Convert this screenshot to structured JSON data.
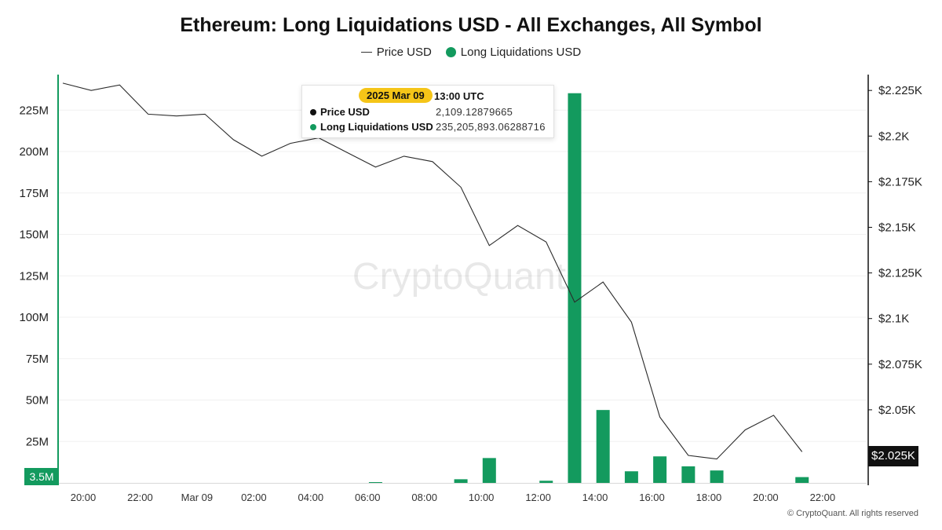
{
  "chart_data": {
    "type": "bar+line",
    "title": "Ethereum: Long Liquidations USD - All Exchanges, All Symbol",
    "legend": [
      "Price USD",
      "Long Liquidations USD"
    ],
    "x_ticks": [
      "20:00",
      "22:00",
      "Mar 09",
      "02:00",
      "04:00",
      "06:00",
      "08:00",
      "10:00",
      "12:00",
      "14:00",
      "16:00",
      "18:00",
      "20:00",
      "22:00"
    ],
    "y_left_ticks": [
      "25M",
      "50M",
      "75M",
      "100M",
      "125M",
      "150M",
      "175M",
      "200M",
      "225M"
    ],
    "y_right_ticks": [
      "$2.025K",
      "$2.05K",
      "$2.075K",
      "$2.1K",
      "$2.125K",
      "$2.15K",
      "$2.175K",
      "$2.2K",
      "$2.225K"
    ],
    "ylim_left": [
      0,
      248000000
    ],
    "ylim_right": [
      2016,
      2232
    ],
    "x_start": "2025-03-08T19:00",
    "x_hours": 28,
    "series": [
      {
        "name": "Long Liquidations USD",
        "type": "bar",
        "color": "#139a5e",
        "points": [
          {
            "t": "2025-03-09T06:00",
            "value": 400000
          },
          {
            "t": "2025-03-09T09:00",
            "value": 2200000
          },
          {
            "t": "2025-03-09T10:00",
            "value": 15000000
          },
          {
            "t": "2025-03-09T12:00",
            "value": 1300000
          },
          {
            "t": "2025-03-09T13:00",
            "value": 235205893.06288716
          },
          {
            "t": "2025-03-09T14:00",
            "value": 44000000
          },
          {
            "t": "2025-03-09T15:00",
            "value": 7000000
          },
          {
            "t": "2025-03-09T16:00",
            "value": 16000000
          },
          {
            "t": "2025-03-09T17:00",
            "value": 10000000
          },
          {
            "t": "2025-03-09T18:00",
            "value": 7500000
          },
          {
            "t": "2025-03-09T21:00",
            "value": 3500000
          }
        ]
      },
      {
        "name": "Price USD",
        "type": "line",
        "color": "#333333",
        "points": [
          {
            "t": "2025-03-08T19:00",
            "value": 2229
          },
          {
            "t": "2025-03-08T20:00",
            "value": 2225
          },
          {
            "t": "2025-03-08T21:00",
            "value": 2228
          },
          {
            "t": "2025-03-08T22:00",
            "value": 2212
          },
          {
            "t": "2025-03-08T23:00",
            "value": 2211
          },
          {
            "t": "2025-03-09T00:00",
            "value": 2212
          },
          {
            "t": "2025-03-09T01:00",
            "value": 2198
          },
          {
            "t": "2025-03-09T02:00",
            "value": 2189
          },
          {
            "t": "2025-03-09T03:00",
            "value": 2196
          },
          {
            "t": "2025-03-09T04:00",
            "value": 2199
          },
          {
            "t": "2025-03-09T05:00",
            "value": 2191
          },
          {
            "t": "2025-03-09T06:00",
            "value": 2183
          },
          {
            "t": "2025-03-09T07:00",
            "value": 2189
          },
          {
            "t": "2025-03-09T08:00",
            "value": 2186
          },
          {
            "t": "2025-03-09T09:00",
            "value": 2172
          },
          {
            "t": "2025-03-09T10:00",
            "value": 2140
          },
          {
            "t": "2025-03-09T11:00",
            "value": 2151
          },
          {
            "t": "2025-03-09T12:00",
            "value": 2142
          },
          {
            "t": "2025-03-09T13:00",
            "value": 2109
          },
          {
            "t": "2025-03-09T14:00",
            "value": 2120
          },
          {
            "t": "2025-03-09T15:00",
            "value": 2098
          },
          {
            "t": "2025-03-09T16:00",
            "value": 2046
          },
          {
            "t": "2025-03-09T17:00",
            "value": 2025
          },
          {
            "t": "2025-03-09T18:00",
            "value": 2023
          },
          {
            "t": "2025-03-09T19:00",
            "value": 2039
          },
          {
            "t": "2025-03-09T20:00",
            "value": 2047
          },
          {
            "t": "2025-03-09T21:00",
            "value": 2027
          }
        ]
      }
    ],
    "grid": true
  },
  "tooltip": {
    "date": "2025 Mar 09",
    "time": "13:00 UTC",
    "price_label": "Price USD",
    "price_value": "2,109.12879665",
    "liq_label": "Long Liquidations USD",
    "liq_value": "235,205,893.06288716"
  },
  "badges": {
    "left_value": "3.5M",
    "right_value": "$2.025K"
  },
  "watermark": "CryptoQuant",
  "copyright": "© CryptoQuant. All rights reserved"
}
